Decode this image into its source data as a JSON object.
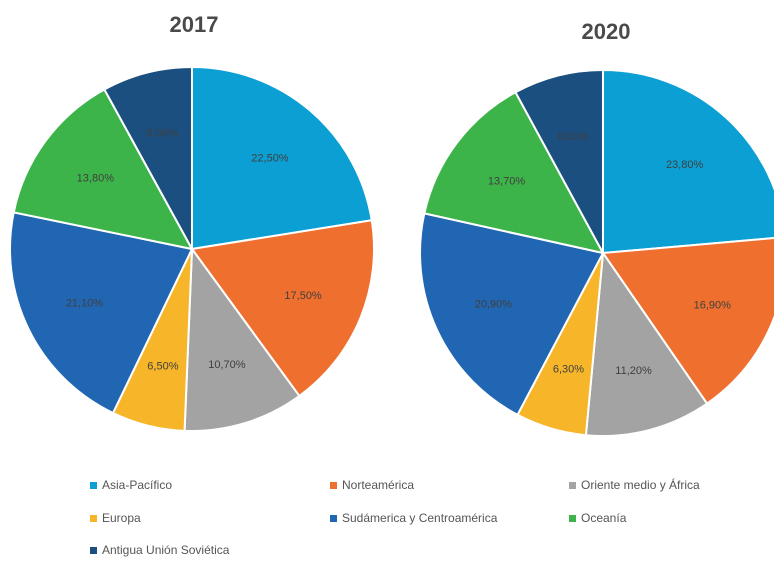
{
  "chart_data": [
    {
      "type": "pie",
      "title": "2017",
      "categories": [
        "Asia-Pacífico",
        "Norteamérica",
        "Oriente medio y África",
        "Europa",
        "Sudámerica y Centroamérica",
        "Oceanía",
        "Antigua Unión Soviética"
      ],
      "values": [
        22.5,
        17.5,
        10.7,
        6.5,
        21.1,
        13.8,
        8.0
      ],
      "labels": [
        "22,50%",
        "17,50%",
        "10,70%",
        "6,50%",
        "21,10%",
        "13,80%",
        "8,00%"
      ]
    },
    {
      "type": "pie",
      "title": "2020",
      "categories": [
        "Asia-Pacífico",
        "Norteamérica",
        "Oriente medio y África",
        "Europa",
        "Sudámerica y Centroamérica",
        "Oceanía",
        "Antigua Unión Soviética"
      ],
      "values": [
        23.8,
        16.9,
        11.2,
        6.3,
        20.9,
        13.7,
        8.0
      ],
      "labels": [
        "23,80%",
        "16,90%",
        "11,20%",
        "6,30%",
        "20,90%",
        "13,70%",
        "8,00%"
      ]
    }
  ],
  "legend": {
    "placement": "bottom",
    "items": [
      {
        "label": "Asia-Pacífico"
      },
      {
        "label": "Norteamérica"
      },
      {
        "label": "Oriente medio y África"
      },
      {
        "label": "Europa"
      },
      {
        "label": "Sudámerica y Centroamérica"
      },
      {
        "label": "Oceanía"
      },
      {
        "label": "Antigua Unión Soviética"
      }
    ]
  },
  "colors": [
    "#0b9fd3",
    "#ef6f2e",
    "#a3a3a3",
    "#f7b529",
    "#2166b2",
    "#3cb44a",
    "#1b4f7f"
  ]
}
